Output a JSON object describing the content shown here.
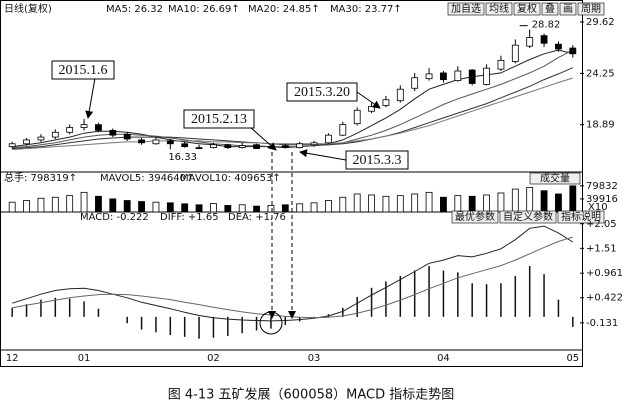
{
  "chart_data": [
    {
      "type": "candlestick",
      "title": "日线(复权)",
      "buttons": [
        "加自选",
        "均线",
        "复权",
        "叠",
        "画",
        "周期"
      ],
      "open": [
        16.6,
        16.9,
        17.3,
        17.6,
        18.1,
        18.6,
        18.9,
        18.3,
        17.9,
        17.3,
        16.9,
        17.2,
        16.9,
        16.5,
        16.5,
        16.8,
        16.5,
        16.8,
        16.5,
        16.7,
        16.5,
        16.8,
        17.0,
        17.8,
        19.0,
        20.3,
        20.9,
        21.4,
        22.7,
        23.7,
        24.3,
        23.5,
        24.6,
        23.1,
        24.7,
        25.5,
        27.1,
        28.2,
        27.3,
        26.9
      ],
      "high": [
        17.1,
        17.5,
        17.9,
        18.4,
        18.9,
        19.5,
        19.1,
        18.5,
        18.1,
        17.5,
        17.6,
        17.4,
        17.1,
        16.8,
        17.0,
        16.9,
        17.0,
        16.9,
        16.8,
        16.9,
        17.1,
        17.2,
        18.0,
        19.2,
        20.7,
        21.2,
        21.9,
        23.0,
        24.3,
        24.8,
        24.5,
        25.0,
        24.7,
        25.2,
        26.1,
        27.8,
        28.82,
        28.4,
        27.6,
        27.2
      ],
      "low": [
        16.4,
        16.7,
        17.1,
        17.4,
        17.9,
        18.3,
        18.1,
        17.6,
        17.2,
        16.8,
        16.8,
        16.33,
        16.5,
        16.35,
        16.4,
        16.35,
        16.4,
        16.35,
        16.4,
        16.4,
        16.4,
        16.6,
        16.9,
        17.7,
        18.8,
        20.1,
        20.7,
        21.2,
        22.4,
        23.5,
        23.3,
        23.4,
        23.0,
        23.0,
        24.5,
        25.3,
        26.9,
        27.0,
        26.5,
        25.9
      ],
      "close": [
        16.9,
        17.3,
        17.6,
        18.1,
        18.6,
        18.9,
        18.3,
        17.8,
        17.4,
        17.0,
        17.3,
        16.9,
        16.6,
        16.4,
        16.8,
        16.5,
        16.7,
        16.4,
        16.6,
        16.5,
        16.9,
        17.0,
        17.8,
        18.9,
        20.4,
        20.8,
        21.5,
        22.6,
        23.8,
        24.2,
        23.6,
        24.5,
        23.2,
        24.8,
        25.6,
        27.2,
        28.0,
        27.4,
        26.8,
        26.3
      ],
      "series": [
        {
          "name": "MA5: 26.32",
          "color": "#222222",
          "values": [
            16.6,
            16.8,
            17.0,
            17.3,
            17.6,
            18.0,
            18.2,
            18.2,
            18.1,
            17.9,
            17.6,
            17.3,
            17.1,
            16.9,
            16.8,
            16.6,
            16.6,
            16.6,
            16.6,
            16.5,
            16.6,
            16.7,
            16.9,
            17.3,
            18.0,
            18.8,
            19.6,
            20.5,
            21.6,
            22.6,
            23.1,
            23.6,
            23.9,
            24.1,
            24.3,
            25.0,
            25.7,
            26.3,
            26.7,
            26.32
          ]
        },
        {
          "name": "MA10: 26.69↑",
          "color": "#555555",
          "values": [
            16.5,
            16.6,
            16.8,
            17.0,
            17.3,
            17.6,
            17.8,
            17.9,
            17.9,
            17.8,
            17.7,
            17.5,
            17.3,
            17.1,
            16.9,
            16.8,
            16.7,
            16.7,
            16.6,
            16.6,
            16.6,
            16.7,
            16.8,
            17.0,
            17.4,
            17.8,
            18.3,
            18.9,
            19.6,
            20.3,
            21.0,
            21.6,
            22.1,
            22.6,
            23.1,
            23.7,
            24.3,
            25.0,
            25.9,
            26.69
          ]
        },
        {
          "name": "MA20: 24.85↑",
          "color": "#333333",
          "values": [
            16.4,
            16.5,
            16.6,
            16.8,
            17.0,
            17.2,
            17.4,
            17.5,
            17.6,
            17.6,
            17.6,
            17.6,
            17.5,
            17.4,
            17.3,
            17.2,
            17.1,
            17.0,
            16.9,
            16.8,
            16.8,
            16.8,
            16.8,
            16.9,
            17.1,
            17.4,
            17.7,
            18.1,
            18.6,
            19.1,
            19.6,
            20.1,
            20.6,
            21.1,
            21.7,
            22.3,
            22.9,
            23.6,
            24.2,
            24.85
          ]
        },
        {
          "name": "MA30: 23.77↑",
          "color": "#777777",
          "values": [
            16.3,
            16.4,
            16.5,
            16.6,
            16.7,
            16.8,
            16.9,
            17.0,
            17.1,
            17.1,
            17.2,
            17.2,
            17.2,
            17.2,
            17.1,
            17.1,
            17.0,
            17.0,
            16.9,
            16.9,
            16.9,
            16.9,
            16.9,
            17.0,
            17.2,
            17.4,
            17.7,
            18.0,
            18.4,
            18.8,
            19.3,
            19.8,
            20.3,
            20.8,
            21.3,
            21.8,
            22.3,
            22.8,
            23.3,
            23.77
          ]
        }
      ],
      "ylim": [
        14.16,
        29.83
      ],
      "yticks": [
        29.62,
        24.25,
        18.89
      ],
      "annotations": [
        "2015.1.6",
        "2015.2.13",
        "2015.3.20",
        "2015.3.3"
      ]
    },
    {
      "type": "bar",
      "header": [
        "总手: 798319↑",
        "MAVOL5: 394640↑",
        "MAVOL10: 409653↑"
      ],
      "button": "成交量",
      "values": [
        30000,
        35000,
        42000,
        45000,
        50000,
        60000,
        48000,
        40000,
        35000,
        32000,
        30000,
        28000,
        25000,
        22000,
        26000,
        20000,
        22000,
        18000,
        20000,
        22000,
        25000,
        28000,
        35000,
        45000,
        55000,
        52000,
        48000,
        50000,
        55000,
        60000,
        45000,
        50000,
        48000,
        52000,
        58000,
        70000,
        75000,
        65000,
        55000,
        79832
      ],
      "ylim": [
        0,
        116000
      ],
      "yticks": [
        79832,
        39916
      ],
      "unit": "X10"
    },
    {
      "type": "macd",
      "buttons": [
        "最优参数",
        "自定义参数",
        "指标说明"
      ],
      "categories": [
        "12",
        null,
        null,
        null,
        null,
        "01",
        null,
        null,
        null,
        null,
        null,
        null,
        null,
        null,
        "02",
        null,
        null,
        null,
        null,
        null,
        null,
        "03",
        null,
        null,
        null,
        null,
        null,
        null,
        null,
        null,
        "04",
        null,
        null,
        null,
        null,
        null,
        null,
        null,
        null,
        "05"
      ],
      "histogram": {
        "name": "MACD: -0.222",
        "color": "#111111",
        "values": [
          0.2,
          0.28,
          0.38,
          0.42,
          0.4,
          0.34,
          0.18,
          0,
          -0.14,
          -0.28,
          -0.34,
          -0.4,
          -0.44,
          -0.48,
          -0.46,
          -0.42,
          -0.36,
          -0.3,
          -0.26,
          -0.18,
          -0.1,
          -0.02,
          0.06,
          0.2,
          0.44,
          0.64,
          0.78,
          0.9,
          1.02,
          1.12,
          1.02,
          0.98,
          0.74,
          0.72,
          0.74,
          0.9,
          1.12,
          0.94,
          0.38,
          -0.222
        ]
      },
      "series": [
        {
          "name": "DIFF: +1.65",
          "color": "#222222",
          "values": [
            0.3,
            0.4,
            0.5,
            0.58,
            0.62,
            0.63,
            0.58,
            0.5,
            0.42,
            0.32,
            0.25,
            0.18,
            0.1,
            0.03,
            -0.02,
            -0.05,
            -0.07,
            -0.08,
            -0.09,
            -0.08,
            -0.06,
            -0.03,
            0.02,
            0.12,
            0.3,
            0.48,
            0.65,
            0.82,
            1.0,
            1.18,
            1.25,
            1.35,
            1.32,
            1.4,
            1.5,
            1.7,
            1.95,
            2.0,
            1.85,
            1.65
          ]
        },
        {
          "name": "DEA: +1.76",
          "color": "#666666",
          "values": [
            0.2,
            0.26,
            0.31,
            0.37,
            0.42,
            0.46,
            0.49,
            0.5,
            0.49,
            0.46,
            0.42,
            0.38,
            0.32,
            0.27,
            0.21,
            0.16,
            0.11,
            0.07,
            0.04,
            0.01,
            -0.01,
            -0.02,
            -0.01,
            0.02,
            0.08,
            0.16,
            0.26,
            0.37,
            0.49,
            0.62,
            0.74,
            0.86,
            0.95,
            1.04,
            1.13,
            1.25,
            1.39,
            1.53,
            1.66,
            1.76
          ]
        }
      ],
      "ylim": [
        -0.73,
        2.31
      ],
      "yticks": [
        {
          "value": 2.05,
          "label": "+2.05"
        },
        {
          "value": 1.51,
          "label": "+1.51"
        },
        {
          "value": 0.961,
          "label": "+0.961"
        },
        {
          "value": 0.422,
          "label": "+0.422"
        },
        -0.131
      ]
    }
  ],
  "caption": "图 4-13  五矿发展（600058）MACD 指标走势图"
}
